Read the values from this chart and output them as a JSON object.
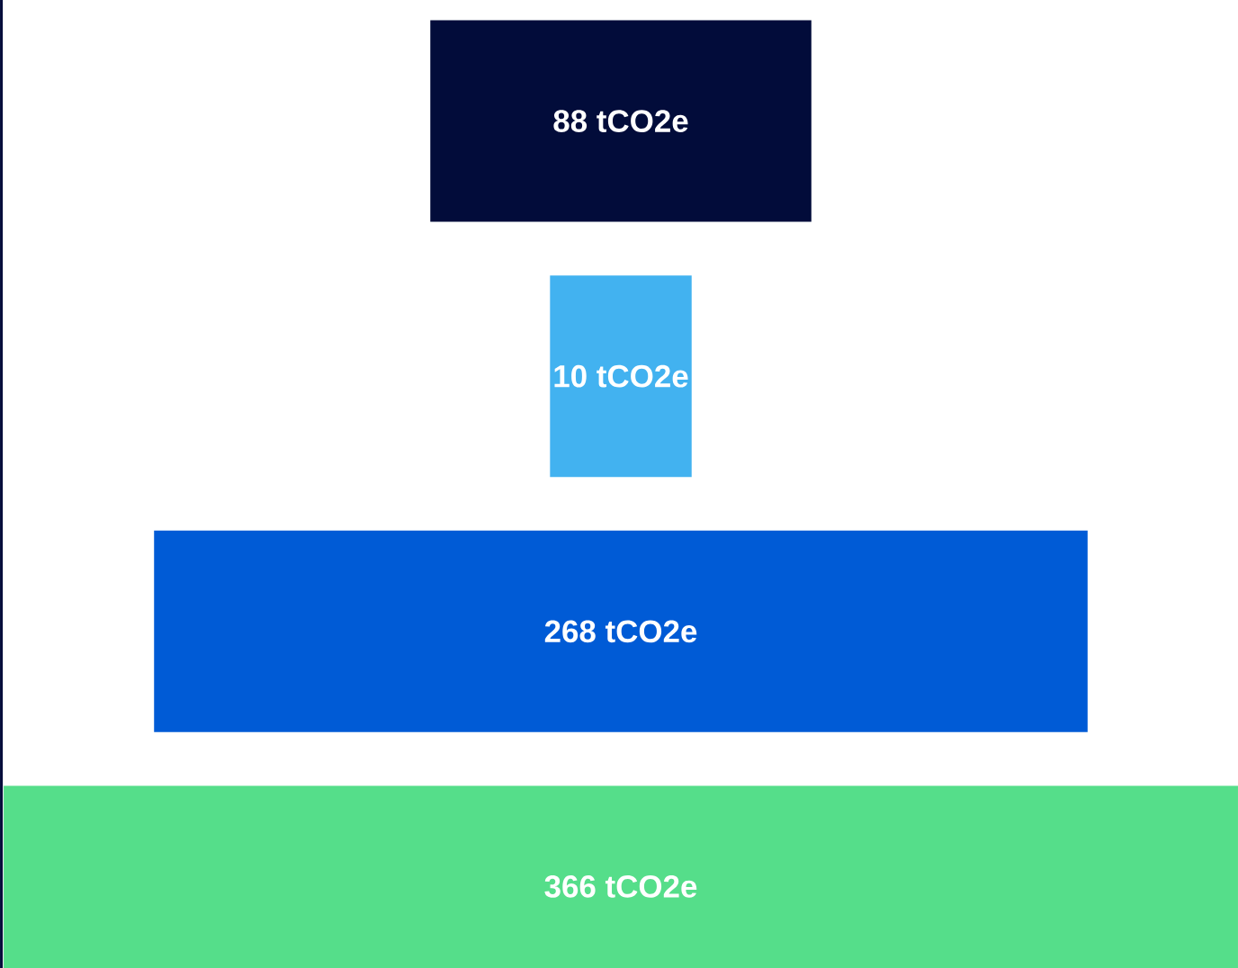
{
  "chart_data": {
    "type": "other",
    "categories": [
      null,
      null,
      null,
      null
    ],
    "values": [
      88,
      10,
      268,
      366
    ],
    "value_labels": [
      "88 tCO2e",
      "10 tCO2e",
      "268 tCO2e",
      "366 tCO2e"
    ],
    "colors": [
      "#020c3a",
      "#42b2f0",
      "#005bd6",
      "#55de8a"
    ]
  }
}
